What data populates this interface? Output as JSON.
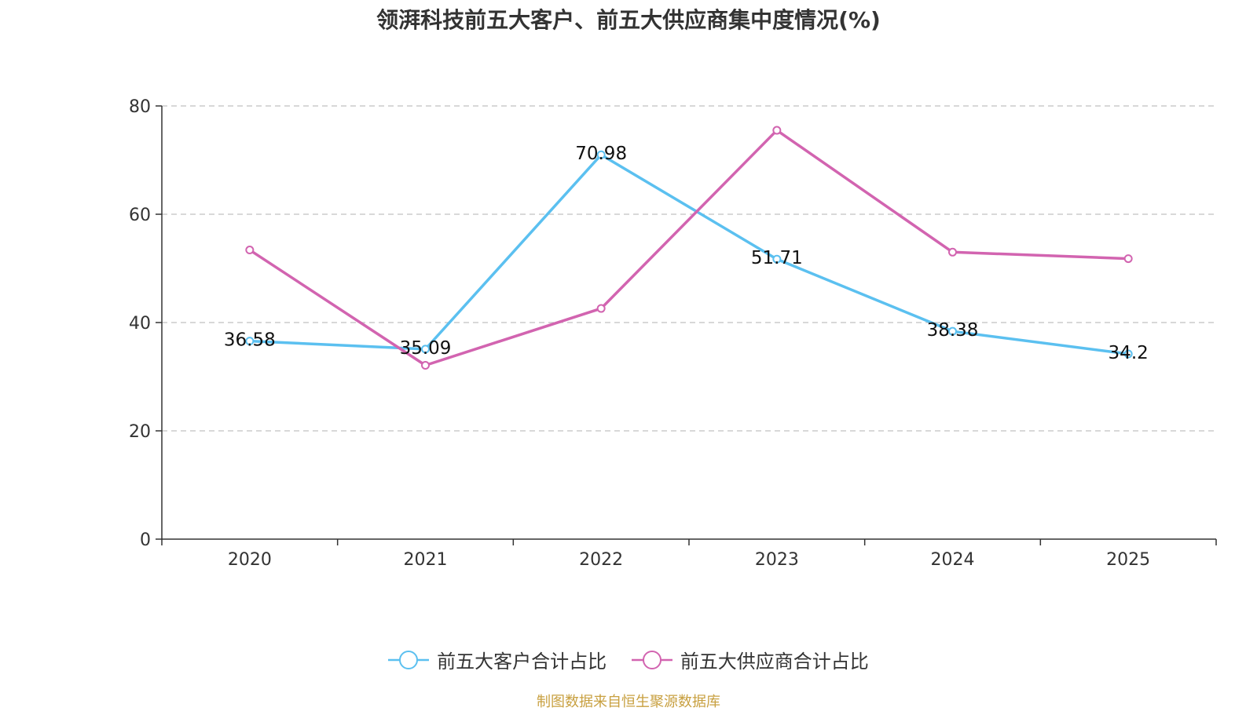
{
  "chart_data": {
    "type": "line",
    "title": "领湃科技前五大客户、前五大供应商集中度情况(%)",
    "categories": [
      "2020",
      "2021",
      "2022",
      "2023",
      "2024",
      "2025"
    ],
    "ylim": [
      0,
      80
    ],
    "yticks": [
      0,
      20,
      40,
      60,
      80
    ],
    "grid": true,
    "legend_position": "bottom",
    "series": [
      {
        "name": "前五大客户合计占比",
        "color": "#5bc0f0",
        "values": [
          36.58,
          35.09,
          70.98,
          51.71,
          38.38,
          34.2
        ],
        "labels": [
          "36.58",
          "35.09",
          "70.98",
          "51.71",
          "38.38",
          "34.2"
        ],
        "show_labels": true
      },
      {
        "name": "前五大供应商合计占比",
        "color": "#d264b0",
        "values": [
          53.4,
          32.1,
          42.6,
          75.5,
          53.0,
          51.8
        ],
        "show_labels": false
      }
    ]
  },
  "footer": {
    "source": "制图数据来自恒生聚源数据库"
  }
}
